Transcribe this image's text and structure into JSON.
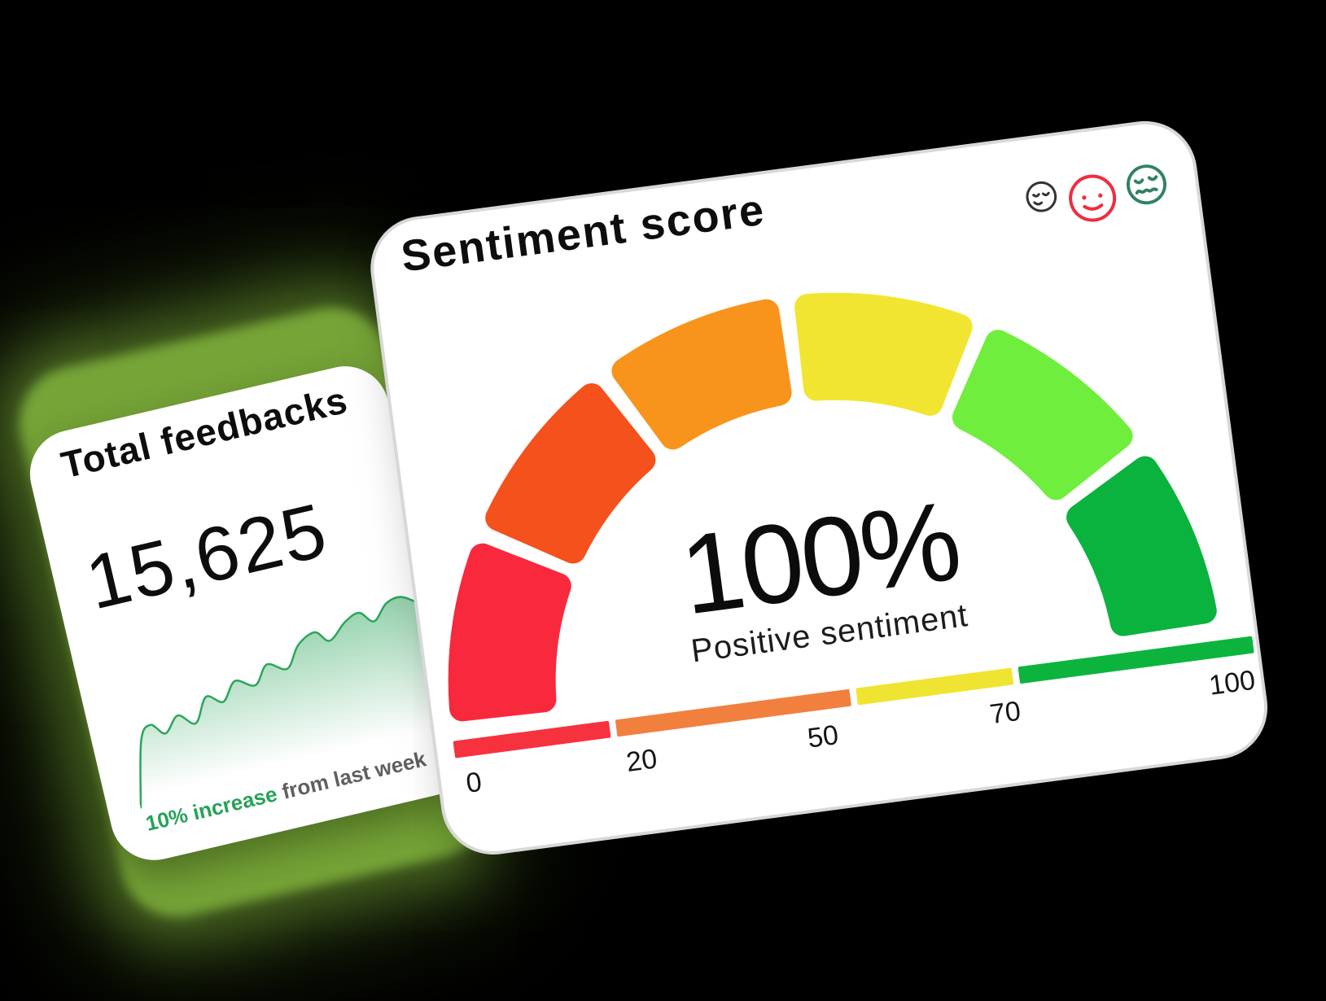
{
  "background_color": "#000000",
  "cards": {
    "sentiment": {
      "accent_rim_color": "#d8d8d8",
      "faces": [
        {
          "name": "relaxed-face",
          "color": "#333333"
        },
        {
          "name": "smiling-face",
          "color": "#ee2d3e"
        },
        {
          "name": "uneasy-face",
          "color": "#2f8263"
        }
      ]
    },
    "feedbacks": {
      "glow_color": "#76a437",
      "note_highlight_color": "#26a258",
      "note_rest_color": "#5f5f5f"
    }
  },
  "chart_data": [
    {
      "type": "gauge",
      "title": "Sentiment score",
      "min": 0,
      "max": 100,
      "value": 100,
      "value_label": "100%",
      "caption": "Positive sentiment",
      "segments": [
        {
          "from": 0,
          "to": 16.7,
          "color": "#f9293d"
        },
        {
          "from": 16.7,
          "to": 33.3,
          "color": "#f4511c"
        },
        {
          "from": 33.3,
          "to": 50,
          "color": "#f8941b"
        },
        {
          "from": 50,
          "to": 66.7,
          "color": "#f2e531"
        },
        {
          "from": 66.7,
          "to": 83.3,
          "color": "#70ee3e"
        },
        {
          "from": 83.3,
          "to": 100,
          "color": "#0ab33e"
        }
      ],
      "scale_bar": [
        {
          "from": 0,
          "to": 20,
          "color": "#f7323f"
        },
        {
          "from": 20,
          "to": 50,
          "color": "#f1803f"
        },
        {
          "from": 50,
          "to": 70,
          "color": "#f0e432"
        },
        {
          "from": 70,
          "to": 100,
          "color": "#0cb43e"
        }
      ],
      "ticks": [
        "0",
        "20",
        "50",
        "70",
        "100"
      ]
    },
    {
      "type": "area",
      "title": "Total feedbacks",
      "value": "15,625",
      "caption_highlight": "10% increase",
      "caption_rest": " from last week",
      "line_color": "#2ca65b",
      "x": [
        0,
        5,
        9,
        13,
        18,
        23,
        28,
        33,
        38,
        44,
        49,
        55,
        60,
        66,
        70,
        76,
        81,
        85,
        90,
        95,
        100
      ],
      "y": [
        100,
        55,
        46,
        54,
        44,
        52,
        36,
        42,
        30,
        36,
        24,
        30,
        16,
        10,
        18,
        8,
        4,
        12,
        2,
        0,
        7
      ]
    }
  ]
}
